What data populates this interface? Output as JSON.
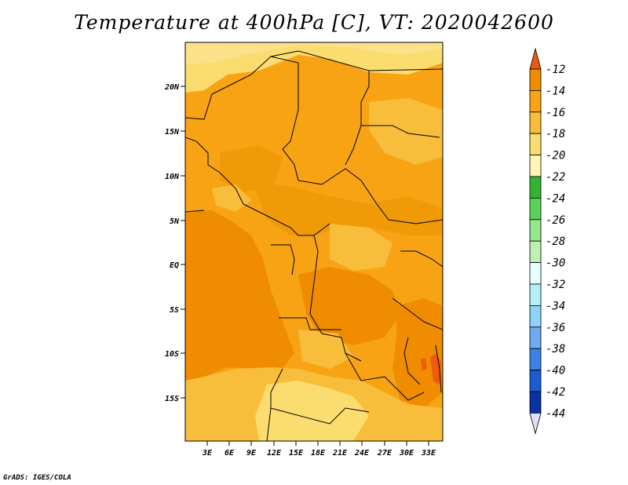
{
  "title": "Temperature at 400hPa [C], VT: 2020042600",
  "footer": "GrADS: IGES/COLA",
  "map": {
    "x_ticks": [
      "3E",
      "6E",
      "9E",
      "12E",
      "15E",
      "18E",
      "21E",
      "24E",
      "27E",
      "30E",
      "33E"
    ],
    "y_ticks": [
      "20N",
      "15N",
      "10N",
      "5N",
      "EQ",
      "5S",
      "10S",
      "15S"
    ]
  },
  "colorbar": {
    "levels": [
      "-12",
      "-14",
      "-16",
      "-18",
      "-20",
      "-22",
      "-24",
      "-26",
      "-28",
      "-30",
      "-32",
      "-34",
      "-36",
      "-38",
      "-40",
      "-42",
      "-44"
    ],
    "colors": [
      "#f05a0c",
      "#f08c00",
      "#f8a314",
      "#f9bd3c",
      "#fbdc6e",
      "#fff5b4",
      "#32b432",
      "#5ad25a",
      "#96e68c",
      "#bef0b4",
      "#e6ffff",
      "#b4f0fa",
      "#8cd2fa",
      "#6eaaf0",
      "#3c82e6",
      "#1e5ad2",
      "#0a32a0",
      "#000066",
      "#e0e0f8"
    ],
    "top_arrow_color": "#f05a0c",
    "bottom_arrow_color": "#e0e0f8"
  }
}
